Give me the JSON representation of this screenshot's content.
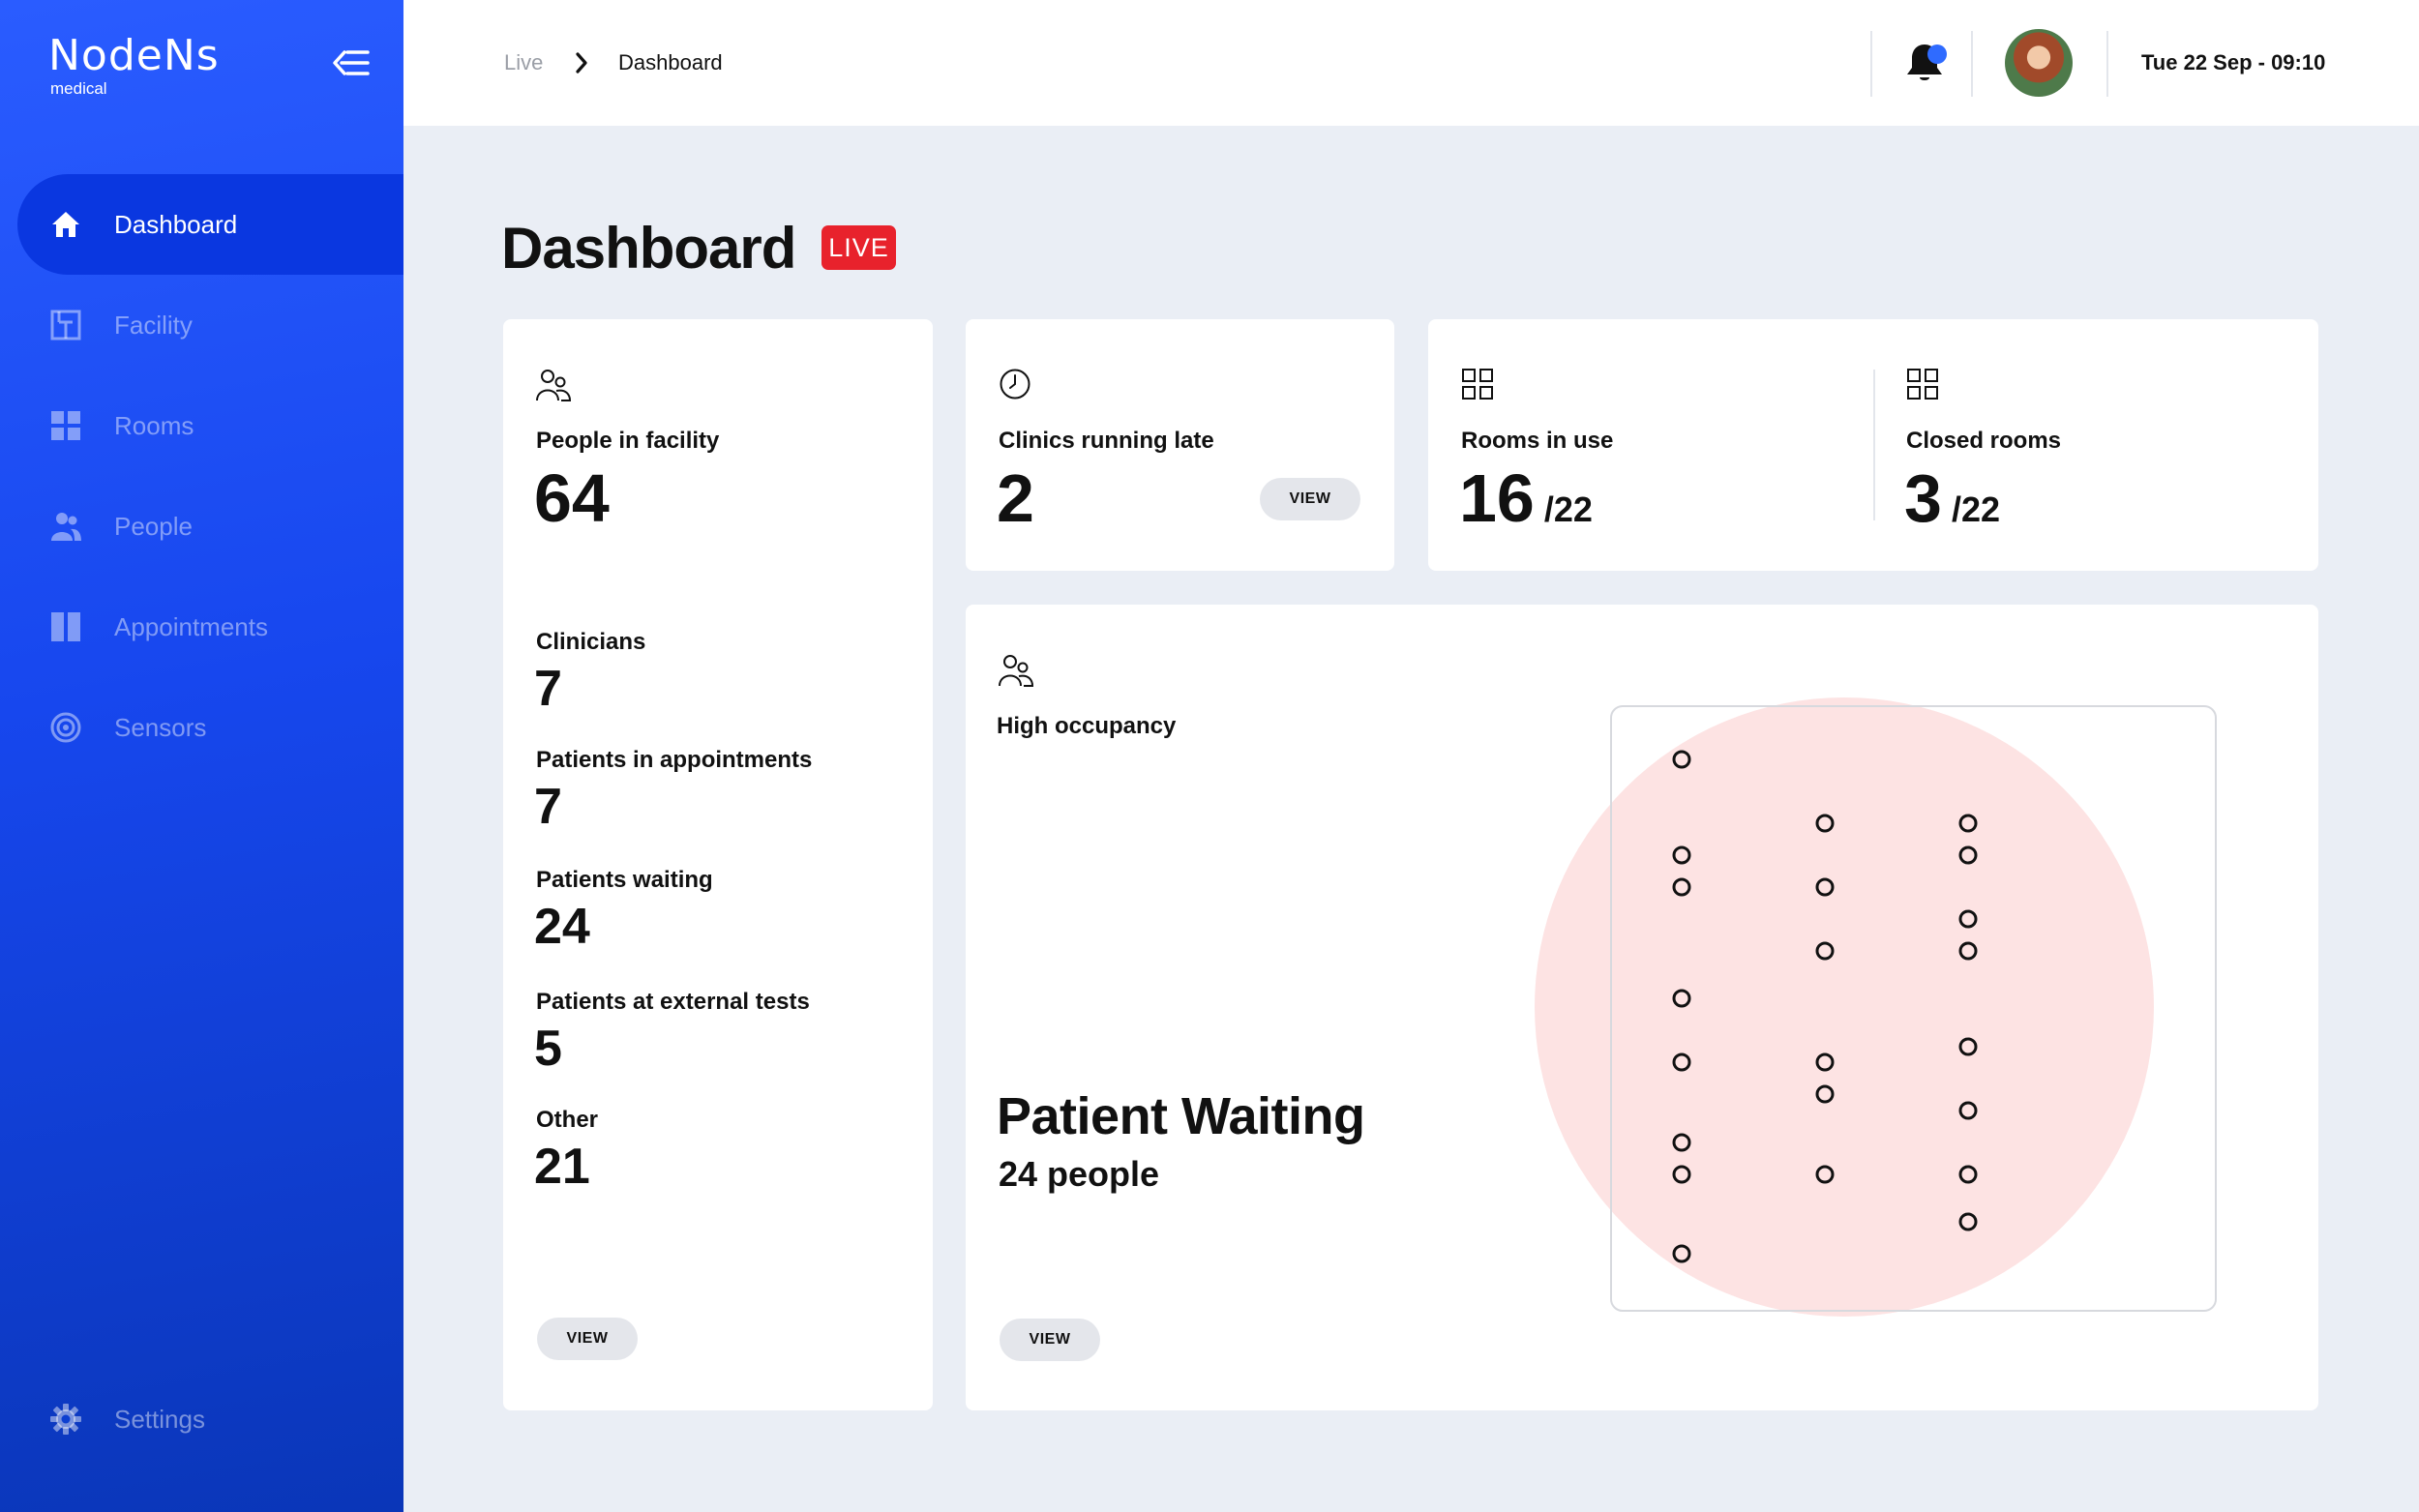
{
  "brand": {
    "logo_main": "NodeNs",
    "logo_sub": "medical"
  },
  "sidebar": {
    "items": [
      {
        "label": "Dashboard",
        "icon": "home-icon",
        "active": true
      },
      {
        "label": "Facility",
        "icon": "facility-icon",
        "active": false
      },
      {
        "label": "Rooms",
        "icon": "grid-icon",
        "active": false
      },
      {
        "label": "People",
        "icon": "people-icon",
        "active": false
      },
      {
        "label": "Appointments",
        "icon": "columns-icon",
        "active": false
      },
      {
        "label": "Sensors",
        "icon": "sensor-icon",
        "active": false
      }
    ],
    "settings_label": "Settings"
  },
  "topbar": {
    "breadcrumb_root": "Live",
    "breadcrumb_current": "Dashboard",
    "datetime": "Tue 22 Sep - 09:10"
  },
  "page": {
    "title": "Dashboard",
    "badge": "LIVE"
  },
  "facility_card": {
    "title": "People in facility",
    "total": "64",
    "breakdown": [
      {
        "label": "Clinicians",
        "value": "7"
      },
      {
        "label": "Patients in appointments",
        "value": "7"
      },
      {
        "label": "Patients waiting",
        "value": "24"
      },
      {
        "label": "Patients at external tests",
        "value": "5"
      },
      {
        "label": "Other",
        "value": "21"
      }
    ],
    "view_label": "VIEW"
  },
  "clinics_card": {
    "title": "Clinics running late",
    "value": "2",
    "view_label": "VIEW"
  },
  "rooms_card": {
    "in_use_label": "Rooms in use",
    "in_use_value": "16",
    "in_use_total": "/22",
    "closed_label": "Closed rooms",
    "closed_value": "3",
    "closed_total": "/22"
  },
  "occupancy_card": {
    "title": "High occupancy",
    "zone_name": "Patient Waiting",
    "zone_count": "24 people",
    "view_label": "VIEW"
  },
  "colors": {
    "accent": "#1747ee",
    "live": "#e8222c",
    "heat": "#fde3e3"
  }
}
